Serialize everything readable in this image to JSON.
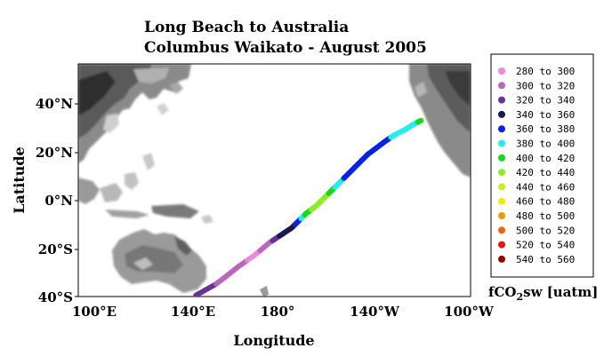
{
  "title_line1": "Long Beach to Australia",
  "title_line2": "Columbus Waikato - August 2005",
  "xlabel": "Longitude",
  "ylabel": "Latitude",
  "x_ticks": [
    "100°E",
    "140°E",
    "180°",
    "140°W",
    "100°W"
  ],
  "y_ticks": [
    "40°N",
    "20°N",
    "0°N",
    "20°S",
    "40°S"
  ],
  "unit_label": {
    "main": "fCO",
    "sub": "2",
    "rest": "sw [uatm]"
  },
  "legend": [
    {
      "label": "280  to  300",
      "color": "#ee88dd"
    },
    {
      "label": "300  to  320",
      "color": "#bb66bb"
    },
    {
      "label": "320  to  340",
      "color": "#663399"
    },
    {
      "label": "340  to  360",
      "color": "#1a1a55"
    },
    {
      "label": "360  to  380",
      "color": "#0022ee"
    },
    {
      "label": "380  to  400",
      "color": "#22eeee"
    },
    {
      "label": "400  to  420",
      "color": "#11dd11"
    },
    {
      "label": "420  to  440",
      "color": "#88ee22"
    },
    {
      "label": "440  to  460",
      "color": "#ccee22"
    },
    {
      "label": "460  to  480",
      "color": "#eeee00"
    },
    {
      "label": "480  to  500",
      "color": "#ee9900"
    },
    {
      "label": "500  to  520",
      "color": "#ee6600"
    },
    {
      "label": "520  to  540",
      "color": "#ee1111"
    },
    {
      "label": "540  to  560",
      "color": "#990000"
    }
  ],
  "chart_data": {
    "type": "scatter",
    "title": "Long Beach to Australia / Columbus Waikato - August 2005",
    "xlabel": "Longitude",
    "ylabel": "Latitude",
    "xlim": [
      100,
      260
    ],
    "ylim": [
      -40,
      55
    ],
    "track": [
      {
        "lon": 148,
        "lat": -39.5,
        "fco2": 330
      },
      {
        "lon": 156,
        "lat": -35,
        "fco2": 320
      },
      {
        "lon": 160,
        "lat": -32,
        "fco2": 315
      },
      {
        "lon": 165,
        "lat": -28,
        "fco2": 305
      },
      {
        "lon": 172,
        "lat": -23,
        "fco2": 295
      },
      {
        "lon": 178,
        "lat": -18,
        "fco2": 310
      },
      {
        "lon": 181,
        "lat": -16,
        "fco2": 335
      },
      {
        "lon": 184,
        "lat": -14,
        "fco2": 350
      },
      {
        "lon": 187,
        "lat": -12,
        "fco2": 350
      },
      {
        "lon": 190,
        "lat": -9,
        "fco2": 370
      },
      {
        "lon": 193,
        "lat": -6,
        "fco2": 410
      },
      {
        "lon": 197,
        "lat": -3,
        "fco2": 430
      },
      {
        "lon": 200,
        "lat": 0,
        "fco2": 440
      },
      {
        "lon": 203,
        "lat": 3,
        "fco2": 410
      },
      {
        "lon": 206,
        "lat": 6,
        "fco2": 390
      },
      {
        "lon": 210,
        "lat": 10,
        "fco2": 370
      },
      {
        "lon": 214,
        "lat": 14,
        "fco2": 370
      },
      {
        "lon": 218,
        "lat": 18,
        "fco2": 370
      },
      {
        "lon": 222,
        "lat": 21,
        "fco2": 370
      },
      {
        "lon": 226,
        "lat": 24,
        "fco2": 370
      },
      {
        "lon": 229,
        "lat": 26,
        "fco2": 390
      },
      {
        "lon": 233,
        "lat": 28,
        "fco2": 390
      },
      {
        "lon": 237,
        "lat": 30.5,
        "fco2": 390
      },
      {
        "lon": 240,
        "lat": 32,
        "fco2": 410
      }
    ]
  }
}
